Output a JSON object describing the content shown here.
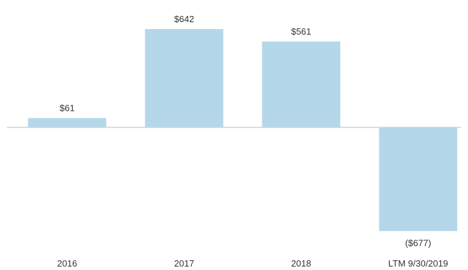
{
  "chart_data": {
    "type": "bar",
    "categories": [
      "2016",
      "2017",
      "2018",
      "LTM 9/30/2019"
    ],
    "values": [
      61,
      642,
      561,
      -677
    ],
    "data_labels": [
      "$61",
      "$642",
      "$561",
      "($677)"
    ],
    "title": "",
    "xlabel": "",
    "ylabel": "",
    "ylim": [
      -677,
      642
    ],
    "grid": false,
    "bar_color": "#b4d7ea",
    "baseline_color": "#d2d2d2",
    "text_color": "#333333"
  }
}
